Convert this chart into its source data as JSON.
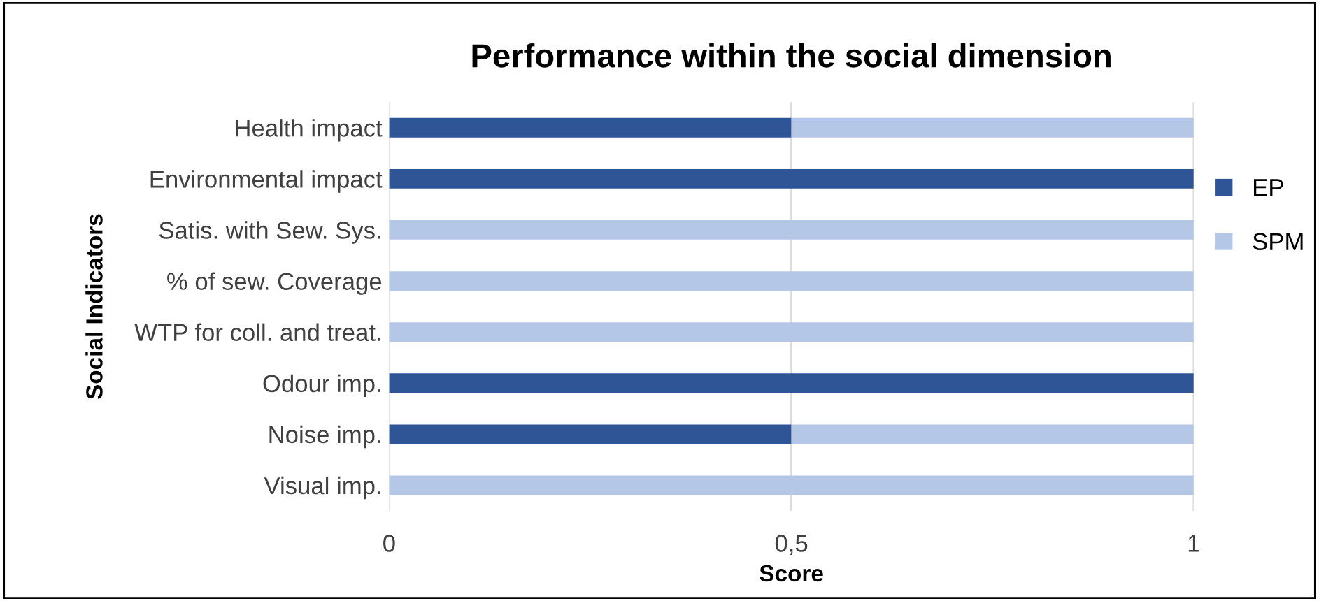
{
  "chart_data": {
    "type": "bar",
    "title": "Performance within the social dimension",
    "xlabel": "Score",
    "ylabel": "Social Indicators",
    "orientation": "horizontal",
    "stacked": true,
    "categories": [
      "Health impact",
      "Environmental impact",
      "Satis. with Sew. Sys.",
      "% of sew. Coverage",
      "WTP for coll. and treat.",
      "Odour imp.",
      "Noise imp.",
      "Visual imp."
    ],
    "series": [
      {
        "name": "EP",
        "color": "#2f5597",
        "values": [
          0.5,
          1,
          0,
          0,
          0,
          1,
          0.5,
          0
        ]
      },
      {
        "name": "SPM",
        "color": "#b4c7e7",
        "values": [
          0.5,
          0,
          1,
          1,
          1,
          0,
          0.5,
          1
        ]
      }
    ],
    "xlim": [
      0,
      1
    ],
    "xticks": [
      0,
      {
        "value": 0.5,
        "label": "0,5"
      },
      1
    ],
    "grid": "x",
    "legend": "right"
  }
}
